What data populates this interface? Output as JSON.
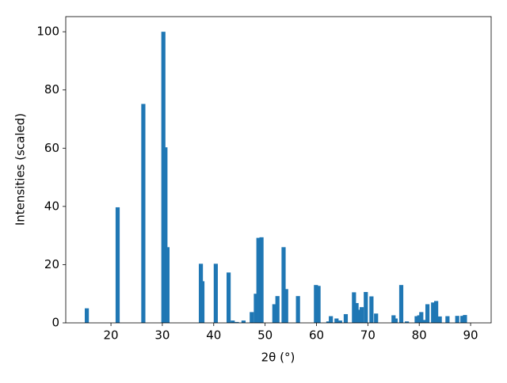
{
  "chart_data": {
    "type": "bar",
    "xlabel": "2θ (°)",
    "ylabel": "Intensities (scaled)",
    "color": "#1f77b4",
    "x": [
      15.3,
      21.3,
      26.3,
      30.2,
      30.6,
      31.0,
      37.5,
      37.8,
      40.4,
      42.9,
      43.7,
      44.5,
      45.8,
      47.4,
      48.2,
      48.7,
      49.3,
      51.8,
      52.4,
      53.6,
      54.1,
      56.4,
      59.9,
      60.4,
      62.3,
      62.8,
      63.9,
      64.6,
      65.7,
      67.3,
      67.8,
      68.2,
      68.8,
      69.6,
      70.7,
      71.6,
      75.0,
      75.4,
      76.5,
      77.6,
      79.5,
      80.0,
      80.4,
      81.0,
      81.6,
      82.7,
      83.3,
      84.0,
      85.5,
      87.4,
      88.4,
      88.9
    ],
    "values": [
      5,
      39.7,
      75.2,
      100,
      60.3,
      26,
      20.3,
      14.3,
      20.3,
      17.3,
      0.8,
      0.3,
      0.8,
      3.7,
      10,
      29.2,
      29.4,
      6.4,
      9.2,
      26,
      11.6,
      9.2,
      13,
      12.7,
      0.5,
      2.3,
      1.5,
      0.8,
      3,
      10.5,
      6.8,
      4.5,
      5.4,
      10.6,
      9.1,
      3.2,
      2.6,
      1.5,
      13,
      0.5,
      2.3,
      2.6,
      3.7,
      1,
      6.4,
      7,
      7.5,
      2.2,
      2.3,
      2.4,
      2.4,
      2.7
    ],
    "xlim": [
      11.2,
      94.0
    ],
    "xticks": [
      20,
      30,
      40,
      50,
      60,
      70,
      80,
      90
    ],
    "ylim": [
      0,
      105.2
    ],
    "yticks": [
      0,
      20,
      40,
      60,
      80,
      100
    ]
  }
}
